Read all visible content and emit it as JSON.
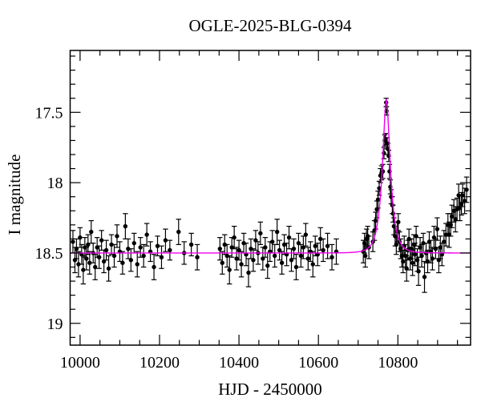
{
  "title": "OGLE-2025-BLG-0394",
  "axes": {
    "xlabel": "HJD - 2450000",
    "ylabel": "I magnitude",
    "x_range": [
      9975,
      10983
    ],
    "y_range": [
      17.06,
      19.155
    ],
    "x_major_ticks": [
      {
        "value": 10000,
        "label": "10000"
      },
      {
        "value": 10200,
        "label": "10200"
      },
      {
        "value": 10400,
        "label": "10400"
      },
      {
        "value": 10600,
        "label": "10600"
      },
      {
        "value": 10800,
        "label": "10800"
      }
    ],
    "x_minor_step": 50,
    "y_major_ticks": [
      {
        "value": 17.5,
        "label": "17.5"
      },
      {
        "value": 18.0,
        "label": "18"
      },
      {
        "value": 18.5,
        "label": "18.5"
      },
      {
        "value": 19.0,
        "label": "19"
      }
    ],
    "y_minor_step": 0.1
  },
  "colors": {
    "background": "#ffffff",
    "frame": "#000000",
    "data_points": "#000000",
    "model_curve": "#ee00ee"
  },
  "chart_data": {
    "type": "scatter",
    "title": "OGLE-2025-BLG-0394",
    "xlabel": "HJD - 2450000",
    "ylabel": "I magnitude",
    "xlim": [
      9975,
      10983
    ],
    "ylim": [
      19.155,
      17.06
    ],
    "y_axis_inverted": true,
    "grid": false,
    "legend": null,
    "model": {
      "name": "microlensing-model",
      "type": "paczynski-curve",
      "color": "#ee00ee",
      "params": {
        "t0": 10771,
        "tE": 19,
        "u0": 0.385,
        "baseline_mag": 18.5,
        "peak_mag": 17.41
      }
    },
    "series": [
      {
        "name": "I-band-photometry",
        "marker": "filled-circle-with-error-bar",
        "color": "#000000",
        "point_format": [
          "hjd_minus_2450000",
          "i_magnitude",
          "magnitude_error"
        ],
        "points": [
          [
            9982,
            18.42,
            0.08
          ],
          [
            9987,
            18.55,
            0.09
          ],
          [
            9991,
            18.47,
            0.07
          ],
          [
            9996,
            18.58,
            0.09
          ],
          [
            10000,
            18.39,
            0.07
          ],
          [
            10004,
            18.51,
            0.07
          ],
          [
            10008,
            18.62,
            0.1
          ],
          [
            10012,
            18.46,
            0.07
          ],
          [
            10016,
            18.54,
            0.08
          ],
          [
            10020,
            18.44,
            0.07
          ],
          [
            10024,
            18.57,
            0.08
          ],
          [
            10028,
            18.35,
            0.08
          ],
          [
            10033,
            18.5,
            0.07
          ],
          [
            10038,
            18.6,
            0.09
          ],
          [
            10043,
            18.46,
            0.07
          ],
          [
            10048,
            18.53,
            0.08
          ],
          [
            10054,
            18.41,
            0.07
          ],
          [
            10060,
            18.56,
            0.08
          ],
          [
            10066,
            18.48,
            0.07
          ],
          [
            10072,
            18.61,
            0.09
          ],
          [
            10079,
            18.44,
            0.07
          ],
          [
            10086,
            18.52,
            0.08
          ],
          [
            10093,
            18.38,
            0.08
          ],
          [
            10100,
            18.49,
            0.07
          ],
          [
            10107,
            18.57,
            0.08
          ],
          [
            10114,
            18.31,
            0.09
          ],
          [
            10121,
            18.47,
            0.07
          ],
          [
            10128,
            18.55,
            0.08
          ],
          [
            10136,
            18.43,
            0.07
          ],
          [
            10144,
            18.58,
            0.09
          ],
          [
            10152,
            18.46,
            0.07
          ],
          [
            10160,
            18.52,
            0.08
          ],
          [
            10168,
            18.37,
            0.08
          ],
          [
            10177,
            18.49,
            0.07
          ],
          [
            10186,
            18.6,
            0.09
          ],
          [
            10195,
            18.45,
            0.07
          ],
          [
            10205,
            18.53,
            0.08
          ],
          [
            10215,
            18.41,
            0.08
          ],
          [
            10226,
            18.48,
            0.07
          ],
          [
            10248,
            18.35,
            0.09
          ],
          [
            10262,
            18.5,
            0.08
          ],
          [
            10280,
            18.44,
            0.08
          ],
          [
            10295,
            18.53,
            0.09
          ],
          [
            10352,
            18.47,
            0.08
          ],
          [
            10358,
            18.57,
            0.08
          ],
          [
            10364,
            18.44,
            0.07
          ],
          [
            10370,
            18.52,
            0.08
          ],
          [
            10376,
            18.62,
            0.1
          ],
          [
            10382,
            18.46,
            0.07
          ],
          [
            10388,
            18.39,
            0.08
          ],
          [
            10394,
            18.54,
            0.08
          ],
          [
            10400,
            18.48,
            0.07
          ],
          [
            10406,
            18.58,
            0.09
          ],
          [
            10412,
            18.43,
            0.07
          ],
          [
            10418,
            18.51,
            0.08
          ],
          [
            10424,
            18.64,
            0.1
          ],
          [
            10430,
            18.47,
            0.07
          ],
          [
            10436,
            18.55,
            0.08
          ],
          [
            10442,
            18.41,
            0.07
          ],
          [
            10448,
            18.5,
            0.08
          ],
          [
            10454,
            18.36,
            0.08
          ],
          [
            10460,
            18.54,
            0.08
          ],
          [
            10466,
            18.46,
            0.07
          ],
          [
            10472,
            18.59,
            0.09
          ],
          [
            10478,
            18.49,
            0.07
          ],
          [
            10484,
            18.42,
            0.08
          ],
          [
            10490,
            18.52,
            0.08
          ],
          [
            10496,
            18.35,
            0.09
          ],
          [
            10502,
            18.48,
            0.07
          ],
          [
            10508,
            18.57,
            0.08
          ],
          [
            10514,
            18.44,
            0.07
          ],
          [
            10520,
            18.51,
            0.08
          ],
          [
            10526,
            18.39,
            0.08
          ],
          [
            10532,
            18.55,
            0.08
          ],
          [
            10538,
            18.47,
            0.07
          ],
          [
            10544,
            18.6,
            0.09
          ],
          [
            10550,
            18.43,
            0.07
          ],
          [
            10556,
            18.52,
            0.08
          ],
          [
            10562,
            18.46,
            0.08
          ],
          [
            10568,
            18.37,
            0.08
          ],
          [
            10574,
            18.54,
            0.08
          ],
          [
            10580,
            18.49,
            0.07
          ],
          [
            10586,
            18.58,
            0.09
          ],
          [
            10592,
            18.45,
            0.07
          ],
          [
            10598,
            18.51,
            0.08
          ],
          [
            10605,
            18.4,
            0.08
          ],
          [
            10612,
            18.48,
            0.08
          ],
          [
            10623,
            18.45,
            0.09
          ],
          [
            10634,
            18.53,
            0.09
          ],
          [
            10645,
            18.49,
            0.09
          ],
          [
            10713,
            18.49,
            0.08
          ],
          [
            10716,
            18.43,
            0.07
          ],
          [
            10718,
            18.52,
            0.08
          ],
          [
            10721,
            18.4,
            0.07
          ],
          [
            10724,
            18.38,
            0.07
          ],
          [
            10727,
            18.46,
            0.08
          ],
          [
            10737,
            18.42,
            0.07
          ],
          [
            10741,
            18.34,
            0.07
          ],
          [
            10744,
            18.27,
            0.06
          ],
          [
            10747,
            18.19,
            0.06
          ],
          [
            10750,
            18.12,
            0.06
          ],
          [
            10753,
            18.04,
            0.05
          ],
          [
            10756,
            17.95,
            0.05
          ],
          [
            10759,
            17.93,
            0.05
          ],
          [
            10762,
            17.92,
            0.05
          ],
          [
            10765,
            17.79,
            0.04
          ],
          [
            10767,
            17.7,
            0.04
          ],
          [
            10769,
            17.69,
            0.04
          ],
          [
            10770.5,
            17.43,
            0.03
          ],
          [
            10771.5,
            17.49,
            0.03
          ],
          [
            10773,
            17.72,
            0.04
          ],
          [
            10775,
            17.76,
            0.04
          ],
          [
            10777,
            17.81,
            0.04
          ],
          [
            10779,
            17.92,
            0.05
          ],
          [
            10781,
            18.03,
            0.05
          ],
          [
            10783,
            18.1,
            0.05
          ],
          [
            10786,
            18.16,
            0.06
          ],
          [
            10788,
            18.22,
            0.06
          ],
          [
            10790,
            18.31,
            0.06
          ],
          [
            10793,
            18.38,
            0.07
          ],
          [
            10796,
            18.44,
            0.07
          ],
          [
            10799,
            18.35,
            0.07
          ],
          [
            10801,
            18.28,
            0.06
          ],
          [
            10804,
            18.42,
            0.07
          ],
          [
            10807,
            18.47,
            0.07
          ],
          [
            10810,
            18.52,
            0.08
          ],
          [
            10813,
            18.56,
            0.08
          ],
          [
            10816,
            18.45,
            0.07
          ],
          [
            10819,
            18.52,
            0.08
          ],
          [
            10822,
            18.61,
            0.09
          ],
          [
            10825,
            18.48,
            0.07
          ],
          [
            10828,
            18.4,
            0.07
          ],
          [
            10831,
            18.54,
            0.08
          ],
          [
            10834,
            18.47,
            0.07
          ],
          [
            10837,
            18.57,
            0.09
          ],
          [
            10840,
            18.44,
            0.07
          ],
          [
            10843,
            18.51,
            0.08
          ],
          [
            10846,
            18.38,
            0.07
          ],
          [
            10849,
            18.55,
            0.08
          ],
          [
            10852,
            18.63,
            0.1
          ],
          [
            10856,
            18.46,
            0.07
          ],
          [
            10860,
            18.52,
            0.08
          ],
          [
            10864,
            18.43,
            0.07
          ],
          [
            10867,
            18.67,
            0.11
          ],
          [
            10871,
            18.5,
            0.07
          ],
          [
            10875,
            18.56,
            0.08
          ],
          [
            10879,
            18.42,
            0.07
          ],
          [
            10883,
            18.49,
            0.08
          ],
          [
            10887,
            18.54,
            0.08
          ],
          [
            10891,
            18.39,
            0.08
          ],
          [
            10895,
            18.47,
            0.07
          ],
          [
            10899,
            18.33,
            0.08
          ],
          [
            10903,
            18.55,
            0.09
          ],
          [
            10907,
            18.46,
            0.08
          ],
          [
            10911,
            18.51,
            0.08
          ],
          [
            10916,
            18.42,
            0.08
          ],
          [
            10921,
            18.37,
            0.08
          ],
          [
            10926,
            18.3,
            0.08
          ],
          [
            10929,
            18.37,
            0.09
          ],
          [
            10933,
            18.3,
            0.08
          ],
          [
            10936,
            18.24,
            0.08
          ],
          [
            10941,
            18.2,
            0.08
          ],
          [
            10945,
            18.26,
            0.09
          ],
          [
            10949,
            18.19,
            0.08
          ],
          [
            10953,
            18.09,
            0.08
          ],
          [
            10956,
            18.18,
            0.09
          ],
          [
            10960,
            18.15,
            0.08
          ],
          [
            10963,
            18.09,
            0.08
          ],
          [
            10968,
            18.13,
            0.09
          ],
          [
            10973,
            18.05,
            0.09
          ]
        ]
      }
    ]
  }
}
